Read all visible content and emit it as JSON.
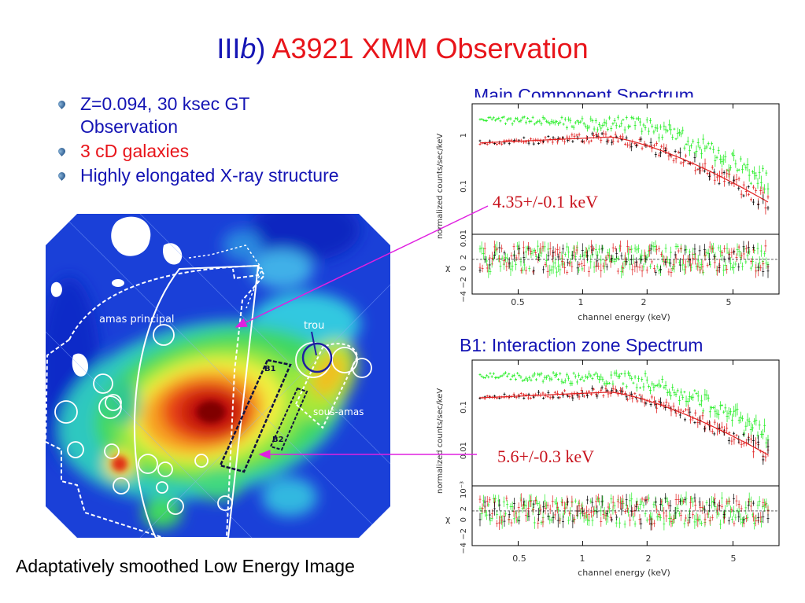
{
  "slide": {
    "title_roman": "III",
    "title_italic": "b",
    "title_paren": ")",
    "title_rest": "A3921 XMM Observation",
    "bullets": [
      {
        "text": "Z=0.094, 30 ksec GT",
        "text2": "Observation",
        "color": "#1414b4"
      },
      {
        "text": "3 cD galaxies",
        "color": "#e8141a"
      },
      {
        "text": "Highly elongated X-ray structure",
        "color": "#1414b4"
      }
    ],
    "caption": "Adaptatively smoothed Low Energy Image"
  },
  "image": {
    "labels": {
      "amas_principal": "amas principal",
      "trou": "trou",
      "b1": "B1",
      "b2": "B2",
      "sous_amas": "sous-amas"
    }
  },
  "spectra": [
    {
      "title": "Main Component Spectrum",
      "temperature": "4.35+/-0.1 keV",
      "y_axis_label": "normalized counts/sec/keV",
      "y_ticks": [
        "1",
        "0.1",
        "0.01"
      ],
      "resid_axis_label": "χ",
      "resid_ticks": [
        "2",
        "0",
        "−2",
        "−4"
      ],
      "x_label": "channel energy (keV)",
      "x_ticks": [
        "0.5",
        "1",
        "2",
        "5"
      ]
    },
    {
      "title": "B1: Interaction zone Spectrum",
      "temperature": "5.6+/-0.3 keV",
      "y_axis_label": "normalized counts/sec/keV",
      "y_ticks": [
        "0.1",
        "0.01",
        "10⁻³"
      ],
      "resid_axis_label": "χ",
      "resid_ticks": [
        "2",
        "0",
        "−2",
        "−4"
      ],
      "x_label": "channel energy (keV)",
      "x_ticks": [
        "0.5",
        "1",
        "2",
        "5"
      ]
    }
  ],
  "colors": {
    "title_blue": "#1414b4",
    "title_red": "#e8141a",
    "arrow": "#e020e0",
    "data_green": "#22ee22",
    "data_red": "#e02020",
    "data_black": "#000000"
  }
}
